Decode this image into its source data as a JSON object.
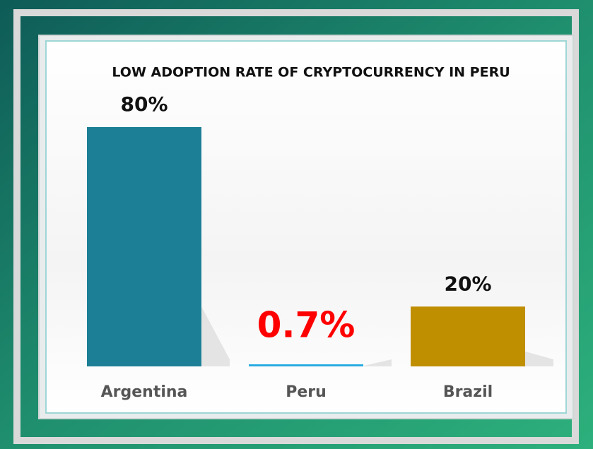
{
  "chart_data": {
    "type": "bar",
    "title": "LOW ADOPTION RATE OF CRYPTOCURRENCY IN PERU",
    "categories": [
      "Argentina",
      "Peru",
      "Brazil"
    ],
    "values": [
      80,
      0.7,
      20
    ],
    "value_labels": [
      "80%",
      "0.7%",
      "20%"
    ],
    "colors": [
      "#1d7f96",
      "#29abe2",
      "#c08f00"
    ],
    "value_label_colors": [
      "#111111",
      "#ff0000",
      "#111111"
    ]
  }
}
